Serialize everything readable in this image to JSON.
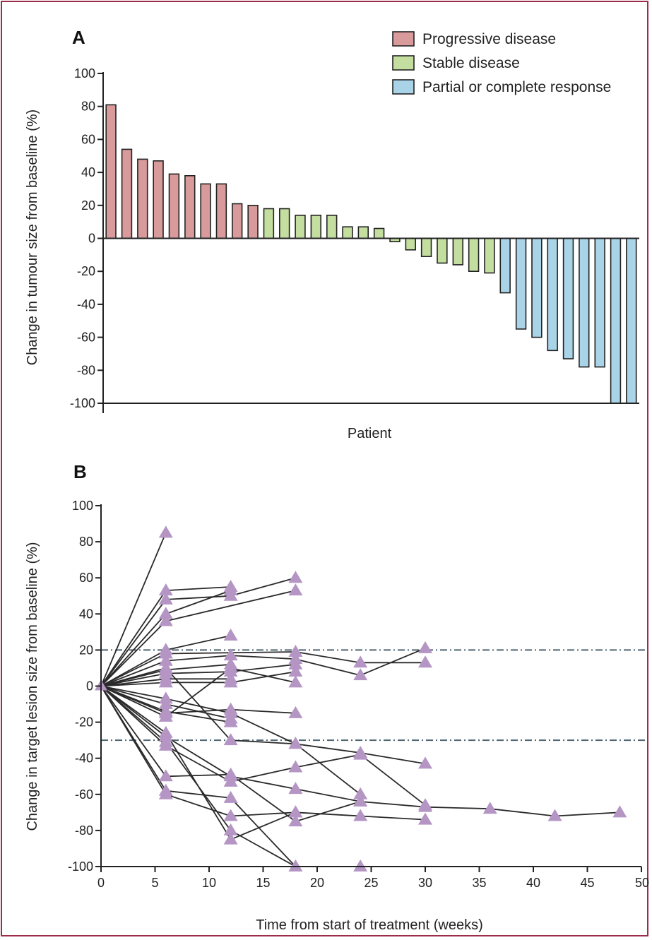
{
  "chart_data": [
    {
      "type": "bar",
      "panel_label": "A",
      "xlabel": "Patient",
      "ylabel": "Change in tumour size from baseline (%)",
      "ylim": [
        -100,
        100
      ],
      "yticks": [
        100,
        80,
        60,
        40,
        20,
        0,
        -20,
        -40,
        -60,
        -80,
        -100
      ],
      "grid": false,
      "legend_position": "top-right",
      "legend": [
        {
          "key": "pd",
          "label": "Progressive disease",
          "color": "#d89a9a"
        },
        {
          "key": "sd",
          "label": "Stable disease",
          "color": "#c4dea0"
        },
        {
          "key": "pr",
          "label": "Partial or complete response",
          "color": "#a9d3e6"
        }
      ],
      "values": [
        81,
        54,
        48,
        47,
        39,
        38,
        33,
        33,
        21,
        20,
        18,
        18,
        14,
        14,
        14,
        7,
        7,
        6,
        -2,
        -7,
        -11,
        -15,
        -16,
        -20,
        -21,
        -33,
        -55,
        -60,
        -68,
        -73,
        -78,
        -78,
        -100,
        -100
      ],
      "groups": [
        "pd",
        "pd",
        "pd",
        "pd",
        "pd",
        "pd",
        "pd",
        "pd",
        "pd",
        "pd",
        "sd",
        "sd",
        "sd",
        "sd",
        "sd",
        "sd",
        "sd",
        "sd",
        "sd",
        "sd",
        "sd",
        "sd",
        "sd",
        "sd",
        "sd",
        "pr",
        "pr",
        "pr",
        "pr",
        "pr",
        "pr",
        "pr",
        "pr",
        "pr"
      ]
    },
    {
      "type": "line",
      "panel_label": "B",
      "xlabel": "Time from start of treatment (weeks)",
      "ylabel": "Change in target lesion size from baseline (%)",
      "xlim": [
        0,
        50
      ],
      "ylim": [
        -100,
        100
      ],
      "xticks": [
        0,
        5,
        10,
        15,
        20,
        25,
        30,
        35,
        40,
        45,
        50
      ],
      "yticks": [
        100,
        80,
        60,
        40,
        20,
        0,
        -20,
        -40,
        -60,
        -80,
        -100
      ],
      "reference_lines": [
        20,
        -30
      ],
      "marker_color": "#b495c4",
      "series": [
        {
          "x": [
            0,
            6
          ],
          "y": [
            0,
            85
          ]
        },
        {
          "x": [
            0,
            6,
            12
          ],
          "y": [
            0,
            53,
            55
          ]
        },
        {
          "x": [
            0,
            6,
            12,
            18
          ],
          "y": [
            0,
            48,
            50,
            60
          ]
        },
        {
          "x": [
            0,
            6,
            12
          ],
          "y": [
            0,
            40,
            53
          ]
        },
        {
          "x": [
            0,
            6,
            18
          ],
          "y": [
            0,
            36,
            53
          ]
        },
        {
          "x": [
            0,
            6,
            12
          ],
          "y": [
            0,
            20,
            28
          ]
        },
        {
          "x": [
            0,
            6,
            18,
            24,
            30
          ],
          "y": [
            0,
            18,
            19,
            13,
            13
          ]
        },
        {
          "x": [
            0,
            6,
            12,
            18,
            24,
            30
          ],
          "y": [
            0,
            14,
            17,
            15,
            6,
            21
          ]
        },
        {
          "x": [
            0,
            6,
            12
          ],
          "y": [
            0,
            9,
            12
          ]
        },
        {
          "x": [
            0,
            6,
            12,
            18
          ],
          "y": [
            0,
            7,
            8,
            12
          ]
        },
        {
          "x": [
            0,
            6,
            12
          ],
          "y": [
            0,
            4,
            4
          ]
        },
        {
          "x": [
            0,
            6,
            12,
            18
          ],
          "y": [
            0,
            2,
            2,
            8
          ]
        },
        {
          "x": [
            0,
            6,
            12,
            18,
            24,
            30
          ],
          "y": [
            0,
            -7,
            -15,
            -32,
            -37,
            -43
          ]
        },
        {
          "x": [
            0,
            6,
            12
          ],
          "y": [
            0,
            -10,
            -18
          ]
        },
        {
          "x": [
            0,
            6,
            12
          ],
          "y": [
            0,
            -14,
            -20
          ]
        },
        {
          "x": [
            0,
            6,
            12,
            18
          ],
          "y": [
            0,
            -15,
            -13,
            -15
          ]
        },
        {
          "x": [
            0,
            6,
            12,
            18
          ],
          "y": [
            0,
            -17,
            10,
            2
          ]
        },
        {
          "x": [
            0,
            6,
            12,
            18,
            24
          ],
          "y": [
            0,
            -28,
            -50,
            -57,
            -64
          ]
        },
        {
          "x": [
            0,
            6,
            12,
            18,
            24,
            30
          ],
          "y": [
            0,
            -33,
            -53,
            -45,
            -38,
            -66
          ]
        },
        {
          "x": [
            0,
            6,
            12,
            18,
            24,
            30,
            36,
            42,
            48
          ],
          "y": [
            0,
            -50,
            -49,
            -75,
            -64,
            -67,
            -68,
            -72,
            -70
          ]
        },
        {
          "x": [
            0,
            6,
            12,
            18
          ],
          "y": [
            0,
            -58,
            -62,
            -100
          ]
        },
        {
          "x": [
            0,
            6,
            12,
            18,
            24,
            30
          ],
          "y": [
            0,
            -60,
            -72,
            -70,
            -72,
            -74
          ]
        },
        {
          "x": [
            0,
            6,
            12,
            18,
            24
          ],
          "y": [
            0,
            -31,
            -80,
            -100,
            -100
          ]
        },
        {
          "x": [
            0,
            6,
            12,
            18
          ],
          "y": [
            0,
            -26,
            -85,
            -70
          ]
        },
        {
          "x": [
            0,
            6,
            12,
            18,
            24
          ],
          "y": [
            0,
            10,
            -30,
            -32,
            -60
          ]
        }
      ]
    }
  ]
}
